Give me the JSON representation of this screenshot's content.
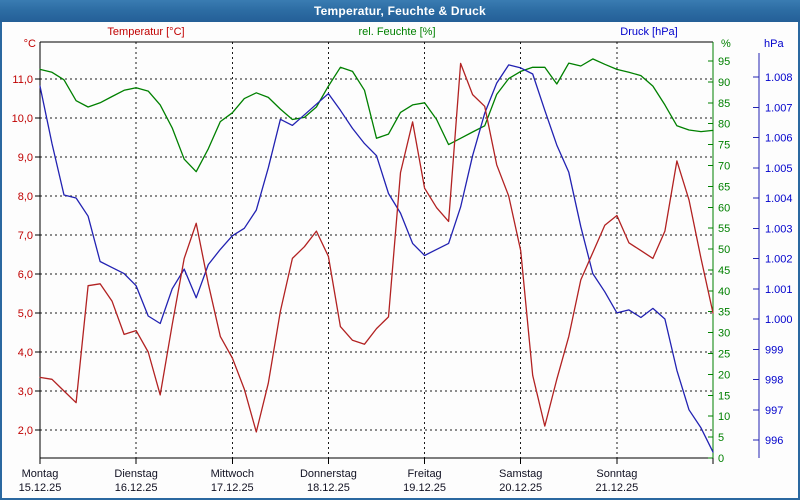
{
  "window": {
    "title": "Temperatur, Feuchte & Druck"
  },
  "legend": {
    "temperature": "Temperatur [°C]",
    "humidity": "rel. Feuchte [%]",
    "pressure": "Druck [hPa]"
  },
  "units": {
    "temperature": "°C",
    "humidity": "%",
    "pressure": "hPa"
  },
  "colors": {
    "titlebar": "#2d6da4",
    "frame": "#2a68a0",
    "temperature_line": "#b22222",
    "humidity_line": "#008000",
    "pressure_line": "#2222b2",
    "temperature_label": "#c00000",
    "humidity_label": "#008000",
    "pressure_label": "#0000cc",
    "grid": "#1a1a1a",
    "day_label": "#111122"
  },
  "axes": {
    "temperature": {
      "unit": "°C",
      "ticks": [
        {
          "value": 11,
          "label": "11,0"
        },
        {
          "value": 10,
          "label": "10,0"
        },
        {
          "value": 9,
          "label": "9,0"
        },
        {
          "value": 8,
          "label": "8,0"
        },
        {
          "value": 7,
          "label": "7,0"
        },
        {
          "value": 6,
          "label": "6,0"
        },
        {
          "value": 5,
          "label": "5,0"
        },
        {
          "value": 4,
          "label": "4,0"
        },
        {
          "value": 3,
          "label": "3,0"
        },
        {
          "value": 2,
          "label": "2,0"
        }
      ]
    },
    "humidity": {
      "unit": "%",
      "ticks": [
        {
          "value": 95,
          "label": "95"
        },
        {
          "value": 90,
          "label": "90"
        },
        {
          "value": 85,
          "label": "85"
        },
        {
          "value": 80,
          "label": "80"
        },
        {
          "value": 75,
          "label": "75"
        },
        {
          "value": 70,
          "label": "70"
        },
        {
          "value": 65,
          "label": "65"
        },
        {
          "value": 60,
          "label": "60"
        },
        {
          "value": 55,
          "label": "55"
        },
        {
          "value": 50,
          "label": "50"
        },
        {
          "value": 45,
          "label": "45"
        },
        {
          "value": 40,
          "label": "40"
        },
        {
          "value": 35,
          "label": "35"
        },
        {
          "value": 30,
          "label": "30"
        },
        {
          "value": 25,
          "label": "25"
        },
        {
          "value": 20,
          "label": "20"
        },
        {
          "value": 15,
          "label": "15"
        },
        {
          "value": 10,
          "label": "10"
        },
        {
          "value": 5,
          "label": "5"
        },
        {
          "value": 0,
          "label": "0"
        }
      ]
    },
    "pressure": {
      "unit": "hPa",
      "ticks": [
        {
          "value": 1008,
          "label": "1.008"
        },
        {
          "value": 1007,
          "label": "1.007"
        },
        {
          "value": 1006,
          "label": "1.006"
        },
        {
          "value": 1005,
          "label": "1.005"
        },
        {
          "value": 1004,
          "label": "1.004"
        },
        {
          "value": 1003,
          "label": "1.003"
        },
        {
          "value": 1002,
          "label": "1.002"
        },
        {
          "value": 1001,
          "label": "1.001"
        },
        {
          "value": 1000,
          "label": "1.000"
        },
        {
          "value": 999,
          "label": "999"
        },
        {
          "value": 998,
          "label": "998"
        },
        {
          "value": 997,
          "label": "997"
        },
        {
          "value": 996,
          "label": "996"
        }
      ]
    },
    "x": {
      "days": [
        {
          "name": "Montag",
          "date": "15.12.25"
        },
        {
          "name": "Dienstag",
          "date": "16.12.25"
        },
        {
          "name": "Mittwoch",
          "date": "17.12.25"
        },
        {
          "name": "Donnerstag",
          "date": "18.12.25"
        },
        {
          "name": "Freitag",
          "date": "19.12.25"
        },
        {
          "name": "Samstag",
          "date": "20.12.25"
        },
        {
          "name": "Sonntag",
          "date": "21.12.25"
        }
      ]
    }
  },
  "chart_data": {
    "type": "line",
    "title": "Temperatur, Feuchte & Druck",
    "x_axis": {
      "start": "Montag 15.12.25 00:00",
      "end": "Sonntag 21.12.25 24:00",
      "days": [
        "Montag 15.12.25",
        "Dienstag 16.12.25",
        "Mittwoch 17.12.25",
        "Donnerstag 18.12.25",
        "Freitag 19.12.25",
        "Samstag 20.12.25",
        "Sonntag 21.12.25"
      ],
      "sample_interval_hours": 3,
      "grid": "dashed, vertical line at each day start"
    },
    "series": [
      {
        "name": "Temperatur [°C]",
        "color": "#b22222",
        "axis_side": "left",
        "unit": "°C",
        "axis_range": [
          2,
          11
        ],
        "values": [
          3.35,
          3.3,
          3.0,
          2.7,
          5.7,
          5.75,
          5.3,
          4.45,
          4.55,
          4.0,
          2.9,
          4.7,
          6.4,
          7.3,
          5.75,
          4.4,
          3.85,
          3.05,
          1.95,
          3.2,
          5.05,
          6.4,
          6.7,
          7.1,
          6.45,
          4.65,
          4.3,
          4.2,
          4.6,
          4.9,
          8.6,
          9.9,
          8.2,
          7.7,
          7.35,
          11.4,
          10.6,
          10.3,
          8.8,
          8.0,
          6.6,
          3.4,
          2.1,
          3.3,
          4.4,
          5.85,
          6.55,
          7.25,
          7.5,
          6.8,
          6.6,
          6.4,
          7.1,
          8.9,
          7.9,
          6.4,
          5.0
        ]
      },
      {
        "name": "rel. Feuchte [%]",
        "color": "#008000",
        "axis_side": "right-inner",
        "unit": "%",
        "axis_range": [
          0,
          95
        ],
        "values": [
          93,
          92.3,
          90.5,
          85.5,
          84,
          85,
          86.5,
          88,
          88.6,
          87.8,
          84.5,
          79,
          71.5,
          68.5,
          74,
          80.5,
          82.6,
          86,
          87.4,
          86.3,
          83.5,
          81,
          81.5,
          84,
          89,
          93.5,
          92.5,
          88,
          76.5,
          77.5,
          82.7,
          84.5,
          85,
          81,
          75,
          76.5,
          78,
          79.5,
          87,
          90.8,
          92.5,
          93.5,
          93.5,
          89.5,
          94.5,
          93.8,
          95.5,
          94.2,
          93,
          92.3,
          91.5,
          89,
          84.5,
          79.5,
          78.5,
          78.1,
          78.4
        ]
      },
      {
        "name": "Druck [hPa]",
        "color": "#2222b2",
        "axis_side": "right-outer",
        "unit": "hPa",
        "axis_range": [
          996,
          1008
        ],
        "values": [
          1007.7,
          1005.8,
          1004.1,
          1004.0,
          1003.4,
          1001.9,
          1001.7,
          1001.5,
          1001.1,
          1000.1,
          999.85,
          1001.0,
          1001.65,
          1000.7,
          1001.8,
          1002.3,
          1002.75,
          1003.0,
          1003.6,
          1005.0,
          1006.6,
          1006.4,
          1006.75,
          1007.1,
          1007.45,
          1006.9,
          1006.3,
          1005.8,
          1005.4,
          1004.15,
          1003.5,
          1002.5,
          1002.1,
          1002.3,
          1002.5,
          1003.7,
          1005.4,
          1006.8,
          1007.8,
          1008.4,
          1008.3,
          1008.1,
          1006.9,
          1005.75,
          1004.85,
          1003.05,
          1001.5,
          1000.9,
          1000.2,
          1000.3,
          1000.05,
          1000.35,
          1000.0,
          998.3,
          997.0,
          996.4,
          995.6
        ]
      }
    ]
  }
}
